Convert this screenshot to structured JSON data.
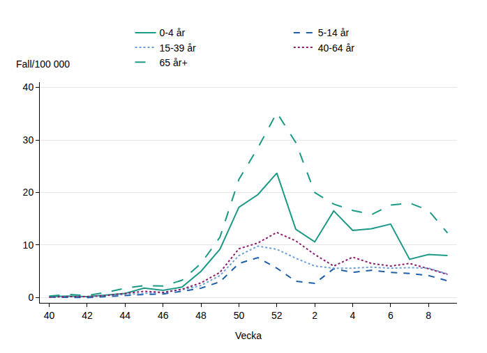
{
  "chart_data": {
    "type": "line",
    "x_label": "Vecka",
    "y_label": "Fall/100 000",
    "categories": [
      "40",
      null,
      "42",
      null,
      "44",
      null,
      "46",
      null,
      "48",
      null,
      "50",
      null,
      "52",
      null,
      "2",
      null,
      "4",
      null,
      "6",
      null,
      "8",
      null
    ],
    "series": [
      {
        "name": "0-4 år",
        "color": "#1a9a86",
        "line_style": "solid",
        "values": [
          0.2,
          0.3,
          0.2,
          0.5,
          0.8,
          1.8,
          1.4,
          2,
          5,
          9.2,
          17.2,
          19.6,
          23.7,
          13,
          10.6,
          16.5,
          12.8,
          13.1,
          14,
          7.3,
          8.2,
          8
        ]
      },
      {
        "name": "5-14 år",
        "color": "#1f5fa8",
        "line_style": "dash",
        "values": [
          0.1,
          0.1,
          0,
          0.2,
          0.4,
          0.6,
          0.7,
          1.2,
          1.8,
          3,
          6.5,
          7.6,
          5.6,
          3.1,
          2.7,
          5.5,
          4.8,
          5.2,
          4.8,
          4.6,
          4.2,
          3.2
        ]
      },
      {
        "name": "15-39 år",
        "color": "#6a9fd8",
        "line_style": "dot",
        "values": [
          0.1,
          0.2,
          0.2,
          0.4,
          0.7,
          0.9,
          1,
          1.5,
          2.3,
          4.2,
          8,
          9.8,
          9.2,
          7.5,
          6,
          5.6,
          5.6,
          5.8,
          5.6,
          5.7,
          5.6,
          4.5
        ]
      },
      {
        "name": "40-64 år",
        "color": "#8b1a6b",
        "line_style": "dot",
        "values": [
          0.1,
          0.2,
          0.2,
          0.4,
          0.8,
          1.2,
          1,
          1.6,
          2.8,
          4.8,
          9.3,
          10.4,
          12.4,
          10.8,
          8.2,
          6,
          7.7,
          6.5,
          6,
          6.5,
          5.5,
          4.4
        ]
      },
      {
        "name": "65 år+",
        "color": "#1a9a86",
        "line_style": "longdash",
        "values": [
          0.3,
          0.6,
          0.4,
          1,
          1.8,
          2.3,
          2.2,
          3.3,
          6.5,
          11.5,
          22.5,
          28.5,
          35.2,
          29.5,
          20,
          17.8,
          16.6,
          15.8,
          17.6,
          18,
          16.6,
          12.3
        ]
      }
    ],
    "ylim": [
      -1,
      41
    ],
    "yticks": [
      0,
      10,
      20,
      30,
      40
    ],
    "grid": true,
    "legend": "top"
  }
}
